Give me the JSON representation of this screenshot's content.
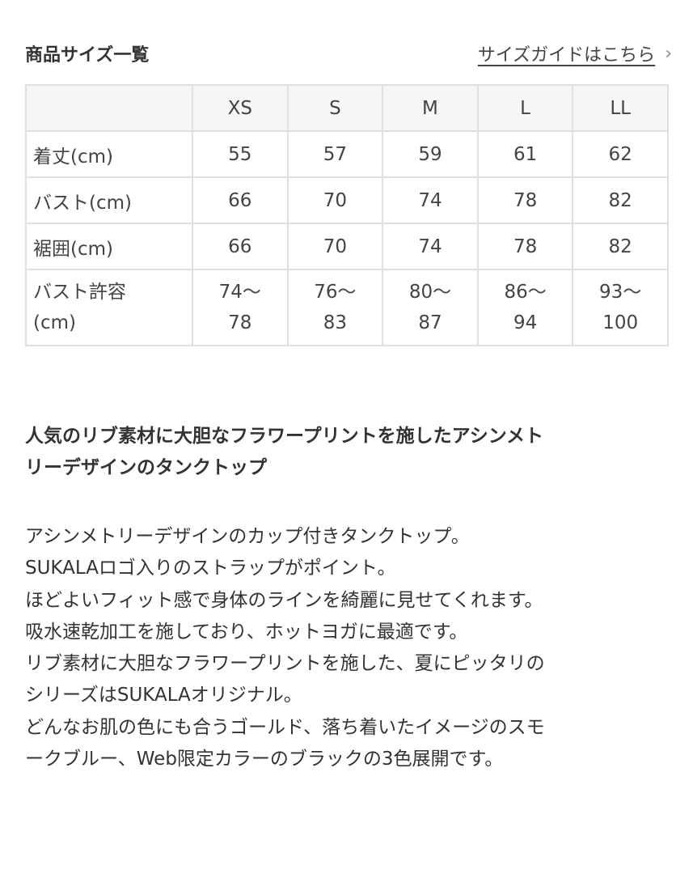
{
  "header": {
    "title": "商品サイズ一覧",
    "guide_link": "サイズガイドはこちら",
    "chevron_icon": "chevron-right-icon"
  },
  "table": {
    "columns": [
      "",
      "XS",
      "S",
      "M",
      "L",
      "LL"
    ],
    "rows": [
      {
        "label": "着丈(cm)",
        "values": [
          "55",
          "57",
          "59",
          "61",
          "62"
        ]
      },
      {
        "label": "バスト(cm)",
        "values": [
          "66",
          "70",
          "74",
          "78",
          "82"
        ]
      },
      {
        "label": "裾囲(cm)",
        "values": [
          "66",
          "70",
          "74",
          "78",
          "82"
        ]
      },
      {
        "label": "バスト許容(cm)",
        "label_lines": [
          "バスト許容",
          "(cm)"
        ],
        "values": [
          [
            "74〜",
            "78"
          ],
          [
            "76〜",
            "83"
          ],
          [
            "80〜",
            "87"
          ],
          [
            "86〜",
            "94"
          ],
          [
            "93〜",
            "100"
          ]
        ]
      }
    ]
  },
  "description": {
    "lead_lines": [
      "人気のリブ素材に大胆なフラワープリントを施したアシンメト",
      "リーデザインのタンクトップ"
    ],
    "body_lines": [
      "アシンメトリーデザインのカップ付きタンクトップ。",
      "SUKALAロゴ入りのストラップがポイント。",
      "ほどよいフィット感で身体のラインを綺麗に見せてくれます。",
      "吸水速乾加工を施しており、ホットヨガに最適です。",
      "リブ素材に大胆なフラワープリントを施した、夏にピッタリの",
      "シリーズはSUKALAオリジナル。",
      "どんなお肌の色にも合うゴールド、落ち着いたイメージのスモ",
      "ークブルー、Web限定カラーのブラックの3色展開です。"
    ]
  }
}
